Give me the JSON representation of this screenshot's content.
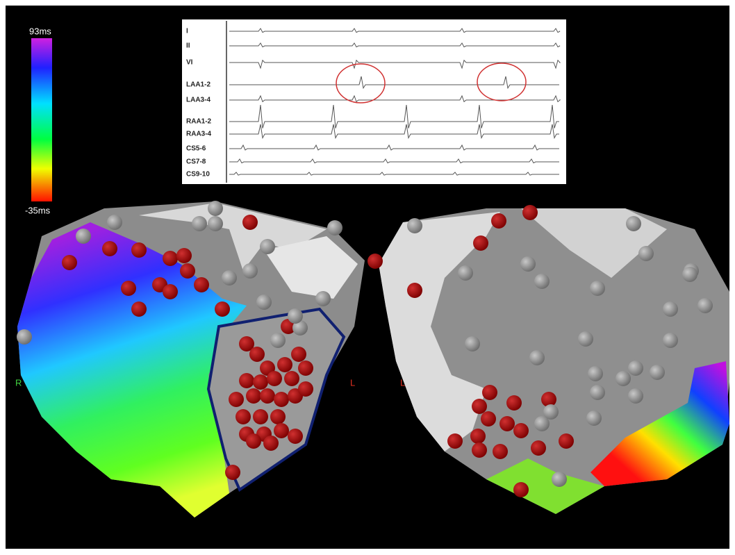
{
  "colorbar": {
    "max_label": "93ms",
    "min_label": "-35ms"
  },
  "ecg_panel": {
    "leads": [
      "I",
      "II",
      "VI",
      "LAA1-2",
      "LAA3-4",
      "RAA1-2",
      "RAA3-4",
      "CS5-6",
      "CS7-8",
      "CS9-10"
    ]
  },
  "map_labels": {
    "left_side": "R",
    "left_map": "L",
    "right_map": "L"
  }
}
